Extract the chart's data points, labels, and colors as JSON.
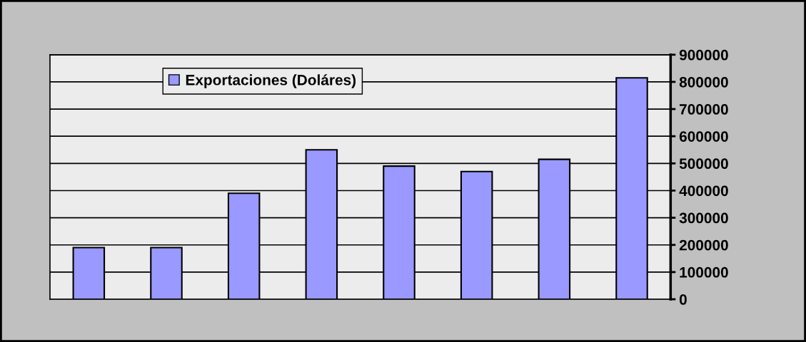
{
  "chart_data": {
    "type": "bar",
    "categories": [
      null,
      null,
      null,
      null,
      null,
      null,
      null,
      null
    ],
    "series": [
      {
        "name": "Exportaciones (Doláres)",
        "color": "#9999ff",
        "values": [
          190000,
          190000,
          390000,
          550000,
          490000,
          470000,
          515000,
          815000
        ]
      }
    ],
    "ylim": [
      0,
      900000
    ],
    "yticks": [
      0,
      100000,
      200000,
      300000,
      400000,
      500000,
      600000,
      700000,
      800000,
      900000
    ],
    "grid": "y",
    "legend": "top left"
  }
}
